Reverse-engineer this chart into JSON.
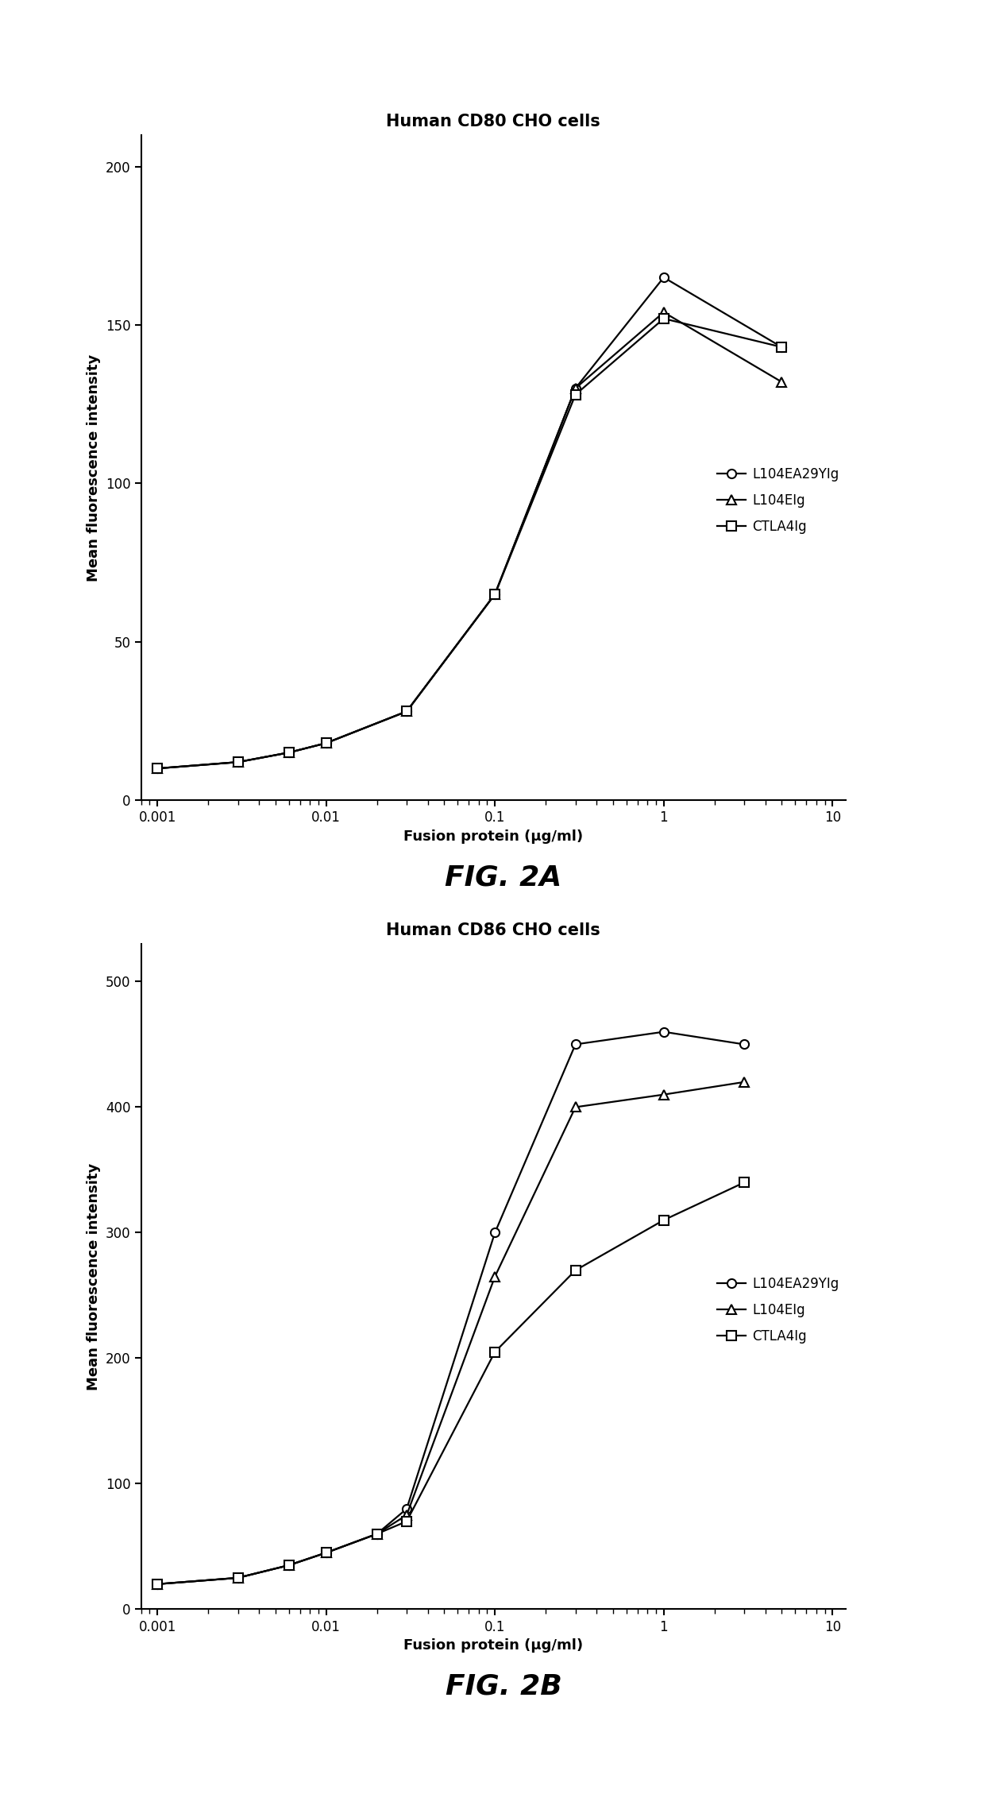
{
  "fig2a": {
    "title": "Human CD80 CHO cells",
    "ylabel": "Mean fluorescence intensity",
    "xlabel": "Fusion protein (μg/ml)",
    "figname": "FIG. 2A",
    "ylim": [
      0,
      210
    ],
    "yticks": [
      0,
      50,
      100,
      150,
      200
    ],
    "xlim": [
      0.0008,
      12
    ],
    "series": {
      "L104EA29YIg": {
        "x": [
          0.001,
          0.003,
          0.006,
          0.01,
          0.03,
          0.1,
          0.3,
          1.0,
          5.0
        ],
        "y": [
          10,
          12,
          15,
          18,
          28,
          65,
          130,
          165,
          143
        ],
        "marker": "o",
        "label": "L104EA29YIg"
      },
      "L104EIg": {
        "x": [
          0.001,
          0.003,
          0.006,
          0.01,
          0.03,
          0.1,
          0.3,
          1.0,
          5.0
        ],
        "y": [
          10,
          12,
          15,
          18,
          28,
          65,
          130,
          154,
          132
        ],
        "marker": "^",
        "label": "L104EIg"
      },
      "CTLA4Ig": {
        "x": [
          0.001,
          0.003,
          0.006,
          0.01,
          0.03,
          0.1,
          0.3,
          1.0,
          5.0
        ],
        "y": [
          10,
          12,
          15,
          18,
          28,
          65,
          128,
          152,
          143
        ],
        "marker": "s",
        "label": "CTLA4Ig"
      }
    }
  },
  "fig2b": {
    "title": "Human CD86 CHO cells",
    "ylabel": "Mean fluorescence intensity",
    "xlabel": "Fusion protein (μg/ml)",
    "figname": "FIG. 2B",
    "ylim": [
      0,
      530
    ],
    "yticks": [
      0,
      100,
      200,
      300,
      400,
      500
    ],
    "xlim": [
      0.0008,
      12
    ],
    "series": {
      "L104EA29YIg": {
        "x": [
          0.001,
          0.003,
          0.006,
          0.01,
          0.02,
          0.03,
          0.1,
          0.3,
          1.0,
          3.0
        ],
        "y": [
          20,
          25,
          35,
          45,
          60,
          80,
          300,
          450,
          460,
          450
        ],
        "marker": "o",
        "label": "L104EA29YIg"
      },
      "L104EIg": {
        "x": [
          0.001,
          0.003,
          0.006,
          0.01,
          0.02,
          0.03,
          0.1,
          0.3,
          1.0,
          3.0
        ],
        "y": [
          20,
          25,
          35,
          45,
          60,
          75,
          265,
          400,
          410,
          420
        ],
        "marker": "^",
        "label": "L104EIg"
      },
      "CTLA4Ig": {
        "x": [
          0.001,
          0.003,
          0.006,
          0.01,
          0.02,
          0.03,
          0.1,
          0.3,
          1.0,
          3.0
        ],
        "y": [
          20,
          25,
          35,
          45,
          60,
          70,
          205,
          270,
          310,
          340
        ],
        "marker": "s",
        "label": "CTLA4Ig"
      }
    }
  },
  "line_color": "#000000",
  "marker_size": 8,
  "line_width": 1.6,
  "title_fontsize": 15,
  "label_fontsize": 13,
  "tick_fontsize": 12,
  "legend_fontsize": 12,
  "figname_fontsize": 26,
  "background_color": "#ffffff"
}
